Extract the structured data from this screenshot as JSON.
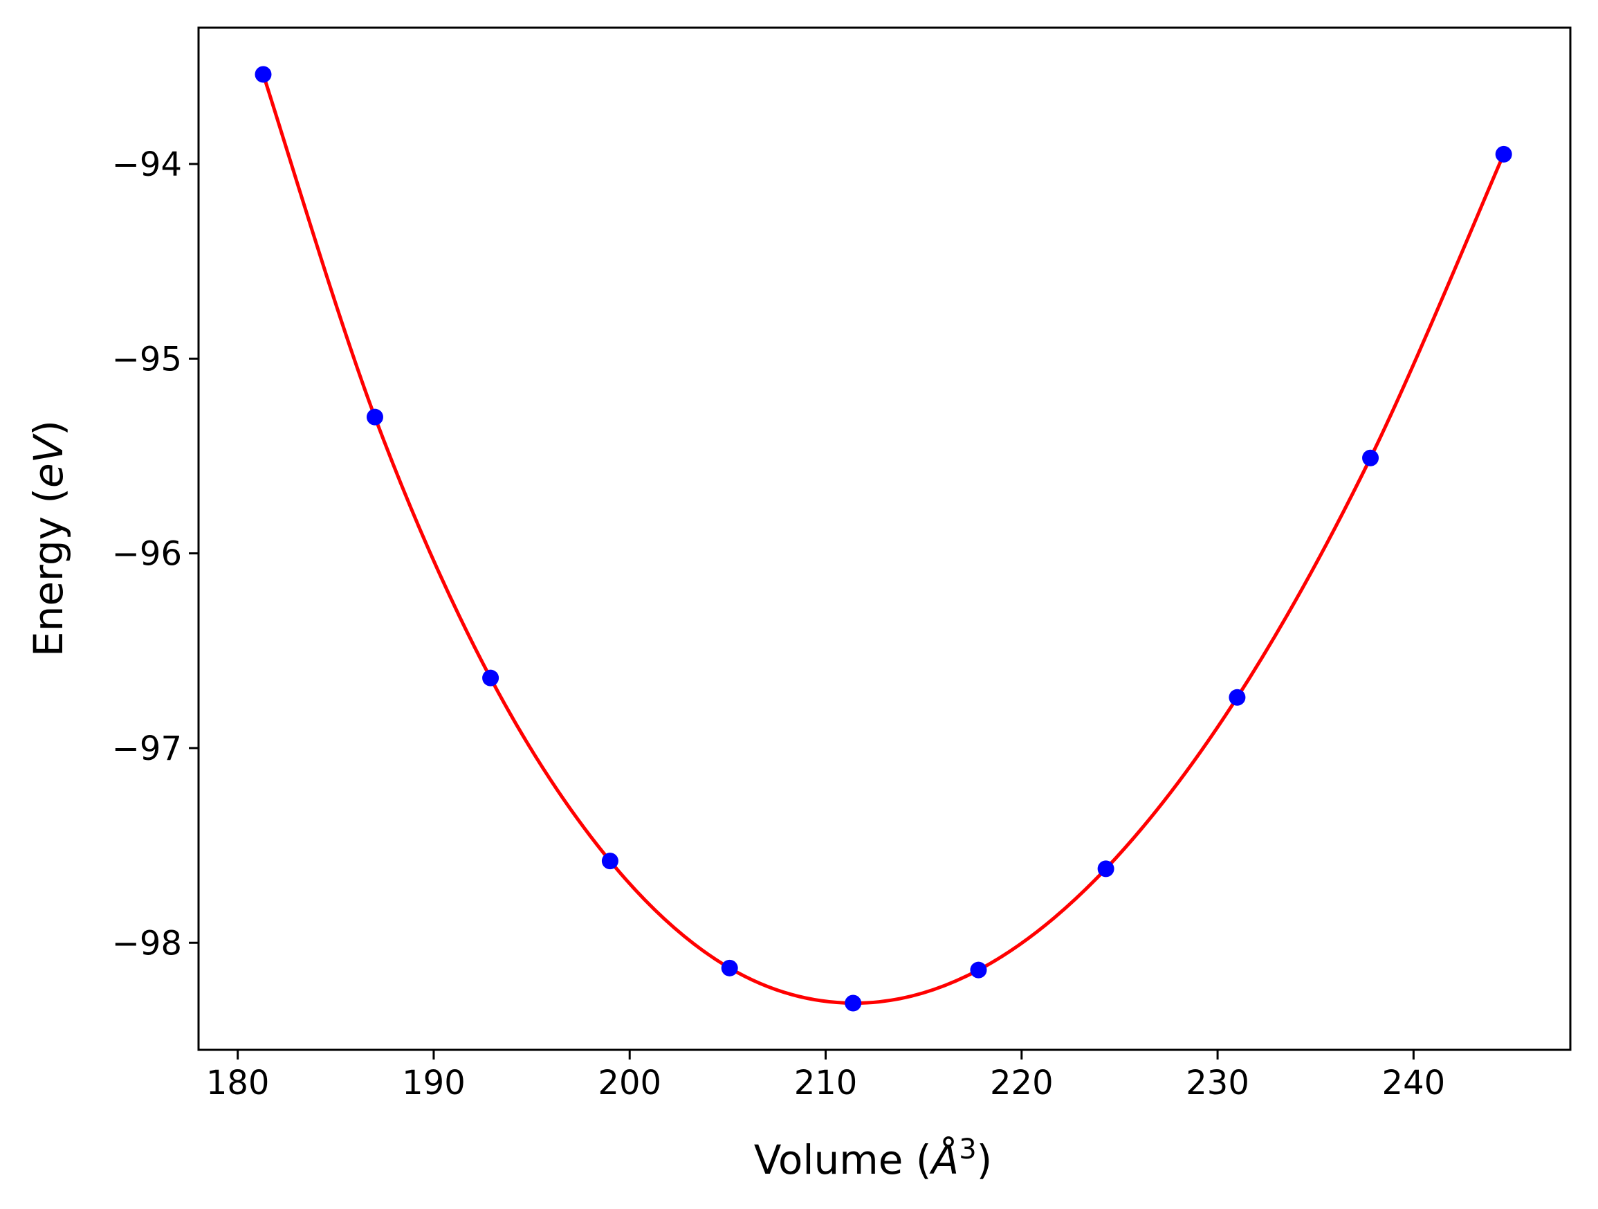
{
  "chart_data": {
    "type": "line",
    "xlabel_prefix": "Volume (",
    "xlabel_unit": "Å",
    "xlabel_exp": "3",
    "xlabel_suffix": ")",
    "ylabel_prefix": "Energy (",
    "ylabel_unit": "eV",
    "ylabel_suffix": ")",
    "xlim": [
      178.0,
      248.0
    ],
    "ylim": [
      -98.55,
      -93.3
    ],
    "xticks": [
      180,
      190,
      200,
      210,
      220,
      230,
      240
    ],
    "yticks": [
      -94,
      -95,
      -96,
      -97,
      -98
    ],
    "xtick_labels": [
      "180",
      "190",
      "200",
      "210",
      "220",
      "230",
      "240"
    ],
    "ytick_labels": [
      "−94",
      "−95",
      "−96",
      "−97",
      "−98"
    ],
    "grid": false,
    "series": [
      {
        "kind": "points",
        "color": "#0000ff",
        "x": [
          181.3,
          187.0,
          192.9,
          199.0,
          205.1,
          211.4,
          217.8,
          224.3,
          231.0,
          237.8,
          244.6
        ],
        "y": [
          -93.54,
          -95.3,
          -96.64,
          -97.58,
          -98.13,
          -98.31,
          -98.14,
          -97.62,
          -96.74,
          -95.51,
          -93.95
        ]
      },
      {
        "kind": "fit-curve",
        "color": "#ff0000",
        "x": [
          181.3,
          187.0,
          192.9,
          199.0,
          205.1,
          211.4,
          217.8,
          224.3,
          231.0,
          237.8,
          244.6
        ],
        "y": [
          -93.54,
          -95.3,
          -96.64,
          -97.58,
          -98.13,
          -98.31,
          -98.14,
          -97.62,
          -96.74,
          -95.51,
          -93.95
        ]
      }
    ]
  }
}
